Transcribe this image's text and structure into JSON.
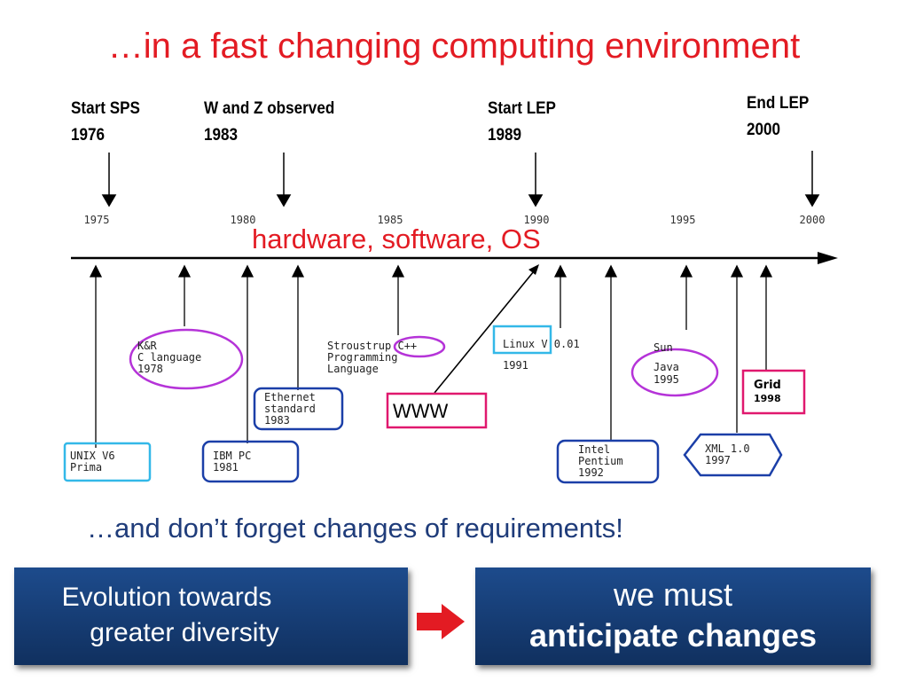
{
  "title": "…in a fast changing computing environment",
  "milestones": [
    {
      "label": "Start SPS",
      "year": "1976"
    },
    {
      "label": "W and Z observed",
      "year": "1983"
    },
    {
      "label": "Start LEP",
      "year": "1989"
    },
    {
      "label": "End LEP",
      "year": "2000"
    }
  ],
  "ticks": [
    "1975",
    "1980",
    "1985",
    "1990",
    "1995",
    "2000"
  ],
  "timeline_label": "hardware, software, OS",
  "events": {
    "unix": [
      "UNIX V6",
      "Prima"
    ],
    "kr": [
      "K&R",
      "C language",
      "1978"
    ],
    "ibm": [
      "IBM PC",
      "1981"
    ],
    "ethernet": [
      "Ethernet",
      "standard",
      "1983"
    ],
    "stroustrup": [
      "Stroustrup C++",
      "Programming",
      "Language"
    ],
    "www": "WWW",
    "linux": [
      "Linux V 0.01",
      "1991"
    ],
    "intel": [
      "Intel",
      "Pentium",
      "1992"
    ],
    "java": [
      "Sun",
      "Java",
      "1995"
    ],
    "xml": [
      "XML 1.0",
      "1997"
    ],
    "grid": [
      "Grid",
      "1998"
    ]
  },
  "note": "…and don’t forget changes of requirements!",
  "left_panel": [
    "Evolution towards",
    "greater diversity"
  ],
  "right_panel": {
    "line1": "we must",
    "line2": "anticipate changes"
  },
  "colors": {
    "title": "#e31b23",
    "note": "#1f3c7a",
    "panel": "#1a4580",
    "arrow": "#e31b23",
    "purple": "#b533d8",
    "blue": "#1b3fa8",
    "cyan": "#33b8e8",
    "magenta": "#e0186e"
  }
}
